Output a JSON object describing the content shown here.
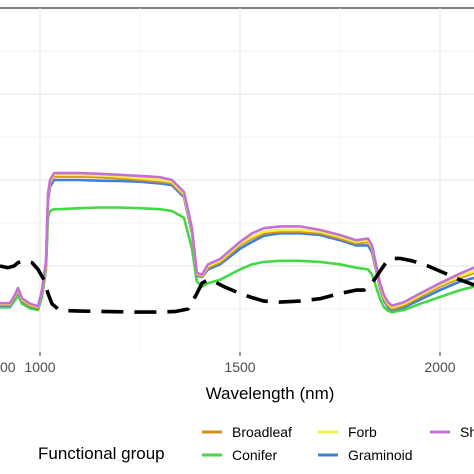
{
  "chart_data": {
    "type": "line",
    "title": "",
    "xlabel": "Wavelength (nm)",
    "ylabel": "",
    "xlim": [
      900,
      2085
    ],
    "ylim": [
      0,
      1
    ],
    "grid": true,
    "legend": {
      "title": "Functional group",
      "placement": "bottom",
      "entries": [
        {
          "label": "Broadleaf",
          "color": "#D4921F"
        },
        {
          "label": "Forb",
          "color": "#EEF04A"
        },
        {
          "label": "Sh",
          "color": "#C570D8"
        },
        {
          "label": "Conifer",
          "color": "#45D845"
        },
        {
          "label": "Graminoid",
          "color": "#3D7FD8"
        }
      ]
    },
    "x_ticks": [
      {
        "value": 1000,
        "label": "1000"
      },
      {
        "value": 1500,
        "label": "1500"
      },
      {
        "value": 2000,
        "label": "2000"
      }
    ],
    "x_tick_partial": {
      "value": 900,
      "label": "00"
    },
    "series": [
      {
        "name": "Broadleaf",
        "color": "#D4921F",
        "style": "solid",
        "points": [
          [
            900,
            0.137
          ],
          [
            925,
            0.137
          ],
          [
            937,
            0.16
          ],
          [
            945,
            0.18
          ],
          [
            955,
            0.15
          ],
          [
            975,
            0.135
          ],
          [
            995,
            0.128
          ],
          [
            1005,
            0.175
          ],
          [
            1015,
            0.25
          ],
          [
            1020,
            0.45
          ],
          [
            1025,
            0.49
          ],
          [
            1035,
            0.51
          ],
          [
            1050,
            0.51
          ],
          [
            1100,
            0.51
          ],
          [
            1150,
            0.508
          ],
          [
            1200,
            0.505
          ],
          [
            1250,
            0.5
          ],
          [
            1300,
            0.495
          ],
          [
            1330,
            0.49
          ],
          [
            1360,
            0.455
          ],
          [
            1380,
            0.35
          ],
          [
            1392,
            0.225
          ],
          [
            1405,
            0.22
          ],
          [
            1420,
            0.245
          ],
          [
            1450,
            0.26
          ],
          [
            1500,
            0.31
          ],
          [
            1530,
            0.33
          ],
          [
            1560,
            0.345
          ],
          [
            1600,
            0.35
          ],
          [
            1650,
            0.35
          ],
          [
            1700,
            0.345
          ],
          [
            1750,
            0.33
          ],
          [
            1790,
            0.315
          ],
          [
            1820,
            0.32
          ],
          [
            1830,
            0.3
          ],
          [
            1840,
            0.245
          ],
          [
            1850,
            0.19
          ],
          [
            1860,
            0.155
          ],
          [
            1870,
            0.135
          ],
          [
            1880,
            0.125
          ],
          [
            1890,
            0.128
          ],
          [
            1910,
            0.135
          ],
          [
            1950,
            0.16
          ],
          [
            2000,
            0.19
          ],
          [
            2050,
            0.215
          ],
          [
            2085,
            0.23
          ]
        ]
      },
      {
        "name": "Forb",
        "color": "#EEF04A",
        "style": "solid",
        "points": [
          [
            900,
            0.14
          ],
          [
            925,
            0.14
          ],
          [
            937,
            0.163
          ],
          [
            945,
            0.183
          ],
          [
            955,
            0.153
          ],
          [
            975,
            0.138
          ],
          [
            995,
            0.131
          ],
          [
            1005,
            0.177
          ],
          [
            1015,
            0.26
          ],
          [
            1020,
            0.455
          ],
          [
            1025,
            0.495
          ],
          [
            1035,
            0.515
          ],
          [
            1050,
            0.515
          ],
          [
            1100,
            0.515
          ],
          [
            1150,
            0.513
          ],
          [
            1200,
            0.51
          ],
          [
            1250,
            0.505
          ],
          [
            1300,
            0.5
          ],
          [
            1330,
            0.495
          ],
          [
            1360,
            0.46
          ],
          [
            1380,
            0.355
          ],
          [
            1392,
            0.228
          ],
          [
            1405,
            0.223
          ],
          [
            1420,
            0.25
          ],
          [
            1450,
            0.265
          ],
          [
            1500,
            0.315
          ],
          [
            1530,
            0.335
          ],
          [
            1560,
            0.35
          ],
          [
            1600,
            0.355
          ],
          [
            1650,
            0.355
          ],
          [
            1700,
            0.35
          ],
          [
            1750,
            0.335
          ],
          [
            1790,
            0.32
          ],
          [
            1820,
            0.325
          ],
          [
            1830,
            0.305
          ],
          [
            1840,
            0.25
          ],
          [
            1850,
            0.195
          ],
          [
            1860,
            0.16
          ],
          [
            1870,
            0.14
          ],
          [
            1880,
            0.13
          ],
          [
            1890,
            0.133
          ],
          [
            1910,
            0.14
          ],
          [
            1950,
            0.165
          ],
          [
            2000,
            0.195
          ],
          [
            2050,
            0.22
          ],
          [
            2085,
            0.235
          ]
        ]
      },
      {
        "name": "Sh",
        "color": "#C570D8",
        "style": "solid",
        "points": [
          [
            900,
            0.142
          ],
          [
            925,
            0.142
          ],
          [
            937,
            0.165
          ],
          [
            945,
            0.186
          ],
          [
            955,
            0.156
          ],
          [
            975,
            0.14
          ],
          [
            995,
            0.133
          ],
          [
            1005,
            0.18
          ],
          [
            1015,
            0.265
          ],
          [
            1020,
            0.46
          ],
          [
            1025,
            0.5
          ],
          [
            1035,
            0.52
          ],
          [
            1050,
            0.52
          ],
          [
            1100,
            0.52
          ],
          [
            1150,
            0.518
          ],
          [
            1200,
            0.515
          ],
          [
            1250,
            0.512
          ],
          [
            1300,
            0.508
          ],
          [
            1330,
            0.5
          ],
          [
            1360,
            0.465
          ],
          [
            1380,
            0.36
          ],
          [
            1392,
            0.23
          ],
          [
            1405,
            0.225
          ],
          [
            1420,
            0.255
          ],
          [
            1450,
            0.27
          ],
          [
            1500,
            0.32
          ],
          [
            1530,
            0.345
          ],
          [
            1560,
            0.36
          ],
          [
            1600,
            0.365
          ],
          [
            1650,
            0.365
          ],
          [
            1700,
            0.355
          ],
          [
            1750,
            0.34
          ],
          [
            1790,
            0.325
          ],
          [
            1820,
            0.33
          ],
          [
            1830,
            0.31
          ],
          [
            1840,
            0.255
          ],
          [
            1850,
            0.2
          ],
          [
            1860,
            0.165
          ],
          [
            1870,
            0.145
          ],
          [
            1880,
            0.135
          ],
          [
            1890,
            0.138
          ],
          [
            1910,
            0.145
          ],
          [
            1950,
            0.17
          ],
          [
            2000,
            0.2
          ],
          [
            2050,
            0.228
          ],
          [
            2085,
            0.245
          ]
        ]
      },
      {
        "name": "Conifer",
        "color": "#45D845",
        "style": "solid",
        "points": [
          [
            900,
            0.13
          ],
          [
            925,
            0.13
          ],
          [
            937,
            0.15
          ],
          [
            945,
            0.165
          ],
          [
            955,
            0.14
          ],
          [
            975,
            0.127
          ],
          [
            995,
            0.122
          ],
          [
            1005,
            0.16
          ],
          [
            1015,
            0.24
          ],
          [
            1020,
            0.39
          ],
          [
            1025,
            0.41
          ],
          [
            1035,
            0.415
          ],
          [
            1050,
            0.415
          ],
          [
            1100,
            0.418
          ],
          [
            1150,
            0.42
          ],
          [
            1200,
            0.42
          ],
          [
            1250,
            0.418
          ],
          [
            1300,
            0.415
          ],
          [
            1330,
            0.41
          ],
          [
            1360,
            0.39
          ],
          [
            1380,
            0.3
          ],
          [
            1392,
            0.205
          ],
          [
            1405,
            0.19
          ],
          [
            1420,
            0.2
          ],
          [
            1450,
            0.21
          ],
          [
            1500,
            0.24
          ],
          [
            1530,
            0.255
          ],
          [
            1560,
            0.262
          ],
          [
            1600,
            0.265
          ],
          [
            1650,
            0.265
          ],
          [
            1700,
            0.262
          ],
          [
            1750,
            0.255
          ],
          [
            1790,
            0.245
          ],
          [
            1820,
            0.24
          ],
          [
            1830,
            0.225
          ],
          [
            1840,
            0.19
          ],
          [
            1850,
            0.155
          ],
          [
            1860,
            0.13
          ],
          [
            1870,
            0.12
          ],
          [
            1880,
            0.115
          ],
          [
            1890,
            0.118
          ],
          [
            1910,
            0.122
          ],
          [
            1950,
            0.14
          ],
          [
            2000,
            0.16
          ],
          [
            2050,
            0.18
          ],
          [
            2085,
            0.19
          ]
        ]
      },
      {
        "name": "Graminoid",
        "color": "#3D7FD8",
        "style": "solid",
        "points": [
          [
            900,
            0.135
          ],
          [
            925,
            0.135
          ],
          [
            937,
            0.158
          ],
          [
            945,
            0.178
          ],
          [
            955,
            0.148
          ],
          [
            975,
            0.133
          ],
          [
            995,
            0.126
          ],
          [
            1005,
            0.172
          ],
          [
            1015,
            0.25
          ],
          [
            1020,
            0.44
          ],
          [
            1025,
            0.48
          ],
          [
            1035,
            0.5
          ],
          [
            1050,
            0.5
          ],
          [
            1100,
            0.5
          ],
          [
            1150,
            0.498
          ],
          [
            1200,
            0.497
          ],
          [
            1250,
            0.495
          ],
          [
            1300,
            0.49
          ],
          [
            1330,
            0.485
          ],
          [
            1360,
            0.45
          ],
          [
            1380,
            0.345
          ],
          [
            1392,
            0.222
          ],
          [
            1405,
            0.218
          ],
          [
            1420,
            0.24
          ],
          [
            1450,
            0.255
          ],
          [
            1500,
            0.3
          ],
          [
            1530,
            0.32
          ],
          [
            1560,
            0.338
          ],
          [
            1600,
            0.345
          ],
          [
            1650,
            0.345
          ],
          [
            1700,
            0.34
          ],
          [
            1750,
            0.325
          ],
          [
            1790,
            0.31
          ],
          [
            1820,
            0.31
          ],
          [
            1830,
            0.29
          ],
          [
            1840,
            0.24
          ],
          [
            1850,
            0.185
          ],
          [
            1860,
            0.15
          ],
          [
            1870,
            0.13
          ],
          [
            1880,
            0.122
          ],
          [
            1890,
            0.125
          ],
          [
            1910,
            0.13
          ],
          [
            1950,
            0.152
          ],
          [
            2000,
            0.18
          ],
          [
            2050,
            0.205
          ],
          [
            2085,
            0.215
          ]
        ]
      },
      {
        "name": "",
        "color": "#000000",
        "style": "dashed",
        "points": [
          [
            900,
            0.25
          ],
          [
            920,
            0.245
          ],
          [
            935,
            0.25
          ],
          [
            945,
            0.26
          ],
          [
            960,
            0.265
          ],
          [
            980,
            0.26
          ],
          [
            995,
            0.24
          ],
          [
            1010,
            0.21
          ],
          [
            1020,
            0.17
          ],
          [
            1030,
            0.14
          ],
          [
            1045,
            0.125
          ],
          [
            1070,
            0.12
          ],
          [
            1100,
            0.119
          ],
          [
            1150,
            0.118
          ],
          [
            1200,
            0.117
          ],
          [
            1250,
            0.116
          ],
          [
            1300,
            0.116
          ],
          [
            1340,
            0.118
          ],
          [
            1370,
            0.125
          ],
          [
            1390,
            0.165
          ],
          [
            1405,
            0.2
          ],
          [
            1420,
            0.21
          ],
          [
            1435,
            0.205
          ],
          [
            1460,
            0.19
          ],
          [
            1500,
            0.17
          ],
          [
            1530,
            0.158
          ],
          [
            1560,
            0.148
          ],
          [
            1600,
            0.145
          ],
          [
            1650,
            0.148
          ],
          [
            1700,
            0.155
          ],
          [
            1750,
            0.17
          ],
          [
            1790,
            0.18
          ],
          [
            1810,
            0.18
          ],
          [
            1830,
            0.2
          ],
          [
            1850,
            0.235
          ],
          [
            1865,
            0.26
          ],
          [
            1880,
            0.272
          ],
          [
            1900,
            0.272
          ],
          [
            1930,
            0.265
          ],
          [
            1970,
            0.25
          ],
          [
            2010,
            0.23
          ],
          [
            2050,
            0.21
          ],
          [
            2085,
            0.195
          ]
        ]
      }
    ]
  }
}
